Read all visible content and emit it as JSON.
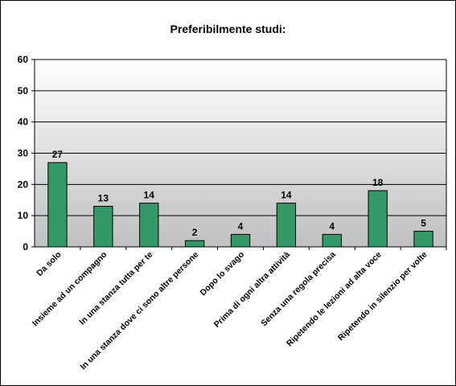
{
  "chart_data": {
    "type": "bar",
    "title": "Preferibilmente studi:",
    "xlabel": "",
    "ylabel": "",
    "ylim": [
      0,
      60
    ],
    "yticks": [
      0,
      10,
      20,
      30,
      40,
      50,
      60
    ],
    "grid": true,
    "legend": "none",
    "categories": [
      "Da solo",
      "Insieme ad un compagno",
      "In una stanza tutta per te",
      "In una stanza dove ci sono altre persone",
      "Dopo lo svago",
      "Prima di ogni altra attività",
      "Senza una regola precisa",
      "Ripetendo le lezioni ad alta voce",
      "Ripetendo in silenzio per volte"
    ],
    "series": [
      {
        "values": [
          27,
          13,
          14,
          2,
          4,
          14,
          4,
          18,
          5
        ],
        "data_labels": [
          "27",
          "13",
          "14",
          "2",
          "4",
          "14",
          "4",
          "18",
          "5"
        ],
        "color": "#339966"
      }
    ],
    "plot_background": [
      "#ffffff",
      "#c0c0c0"
    ]
  }
}
